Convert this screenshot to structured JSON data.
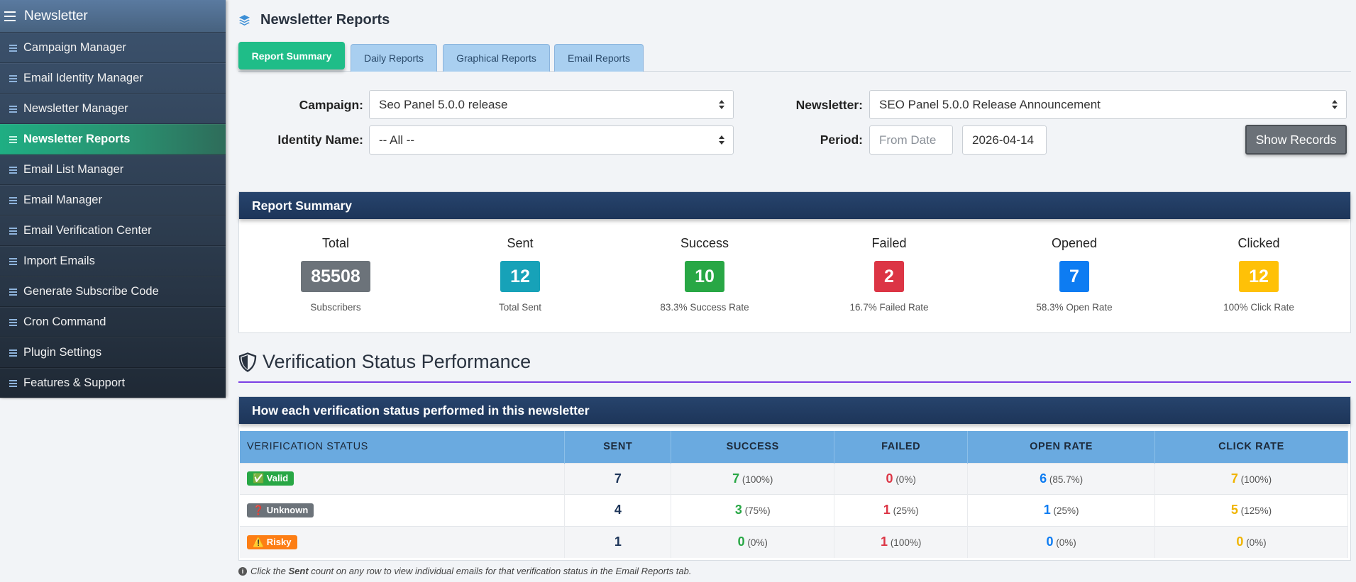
{
  "sidebar": {
    "title": "Newsletter",
    "items": [
      {
        "label": "Campaign Manager"
      },
      {
        "label": "Email Identity Manager"
      },
      {
        "label": "Newsletter Manager"
      },
      {
        "label": "Newsletter Reports"
      },
      {
        "label": "Email List Manager"
      },
      {
        "label": "Email Manager"
      },
      {
        "label": "Email Verification Center"
      },
      {
        "label": "Import Emails"
      },
      {
        "label": "Generate Subscribe Code"
      },
      {
        "label": "Cron Command"
      },
      {
        "label": "Plugin Settings"
      },
      {
        "label": "Features & Support"
      }
    ]
  },
  "page": {
    "title": "Newsletter Reports"
  },
  "tabs": [
    {
      "label": "Report Summary"
    },
    {
      "label": "Daily Reports"
    },
    {
      "label": "Graphical Reports"
    },
    {
      "label": "Email Reports"
    }
  ],
  "filters": {
    "campaign_label": "Campaign:",
    "campaign_value": "Seo Panel 5.0.0 release",
    "newsletter_label": "Newsletter:",
    "newsletter_value": "SEO Panel 5.0.0 Release Announcement",
    "identity_label": "Identity Name:",
    "identity_value": "-- All --",
    "period_label": "Period:",
    "from_placeholder": "From Date",
    "to_value": "2026-04-14",
    "show_button": "Show Records"
  },
  "summary": {
    "heading": "Report Summary",
    "stats": [
      {
        "label": "Total",
        "value": "85508",
        "sub": "Subscribers",
        "color": "#6c737a"
      },
      {
        "label": "Sent",
        "value": "12",
        "sub": "Total Sent",
        "color": "#17a2b8"
      },
      {
        "label": "Success",
        "value": "10",
        "sub": "83.3% Success Rate",
        "color": "#28a745"
      },
      {
        "label": "Failed",
        "value": "2",
        "sub": "16.7% Failed Rate",
        "color": "#dc3545"
      },
      {
        "label": "Opened",
        "value": "7",
        "sub": "58.3% Open Rate",
        "color": "#0d7cf2"
      },
      {
        "label": "Clicked",
        "value": "12",
        "sub": "100% Click Rate",
        "color": "#ffc107"
      }
    ]
  },
  "verification": {
    "title": "Verification Status Performance",
    "panel_heading": "How each verification status performed in this newsletter",
    "columns": [
      "VERIFICATION STATUS",
      "SENT",
      "SUCCESS",
      "FAILED",
      "OPEN RATE",
      "CLICK RATE"
    ],
    "rows": [
      {
        "status": "✅ Valid",
        "status_color": "#28a745",
        "sent": "7",
        "success": "7",
        "success_pct": "(100%)",
        "failed": "0",
        "failed_pct": "(0%)",
        "open": "6",
        "open_pct": "(85.7%)",
        "click": "7",
        "click_pct": "(100%)"
      },
      {
        "status": "❓ Unknown",
        "status_color": "#6c737a",
        "sent": "4",
        "success": "3",
        "success_pct": "(75%)",
        "failed": "1",
        "failed_pct": "(25%)",
        "open": "1",
        "open_pct": "(25%)",
        "click": "5",
        "click_pct": "(125%)"
      },
      {
        "status": "⚠️ Risky",
        "status_color": "#fd7e14",
        "sent": "1",
        "success": "0",
        "success_pct": "(0%)",
        "failed": "1",
        "failed_pct": "(100%)",
        "open": "0",
        "open_pct": "(0%)",
        "click": "0",
        "click_pct": "(0%)"
      }
    ],
    "footnote_pre": "Click the ",
    "footnote_bold": "Sent",
    "footnote_post": " count on any row to view individual emails for that verification status in the Email Reports tab."
  },
  "colors": {
    "sent": "#1d3559",
    "success": "#28a745",
    "failed": "#dc3545",
    "open": "#0d7cf2",
    "click": "#f0b400"
  }
}
